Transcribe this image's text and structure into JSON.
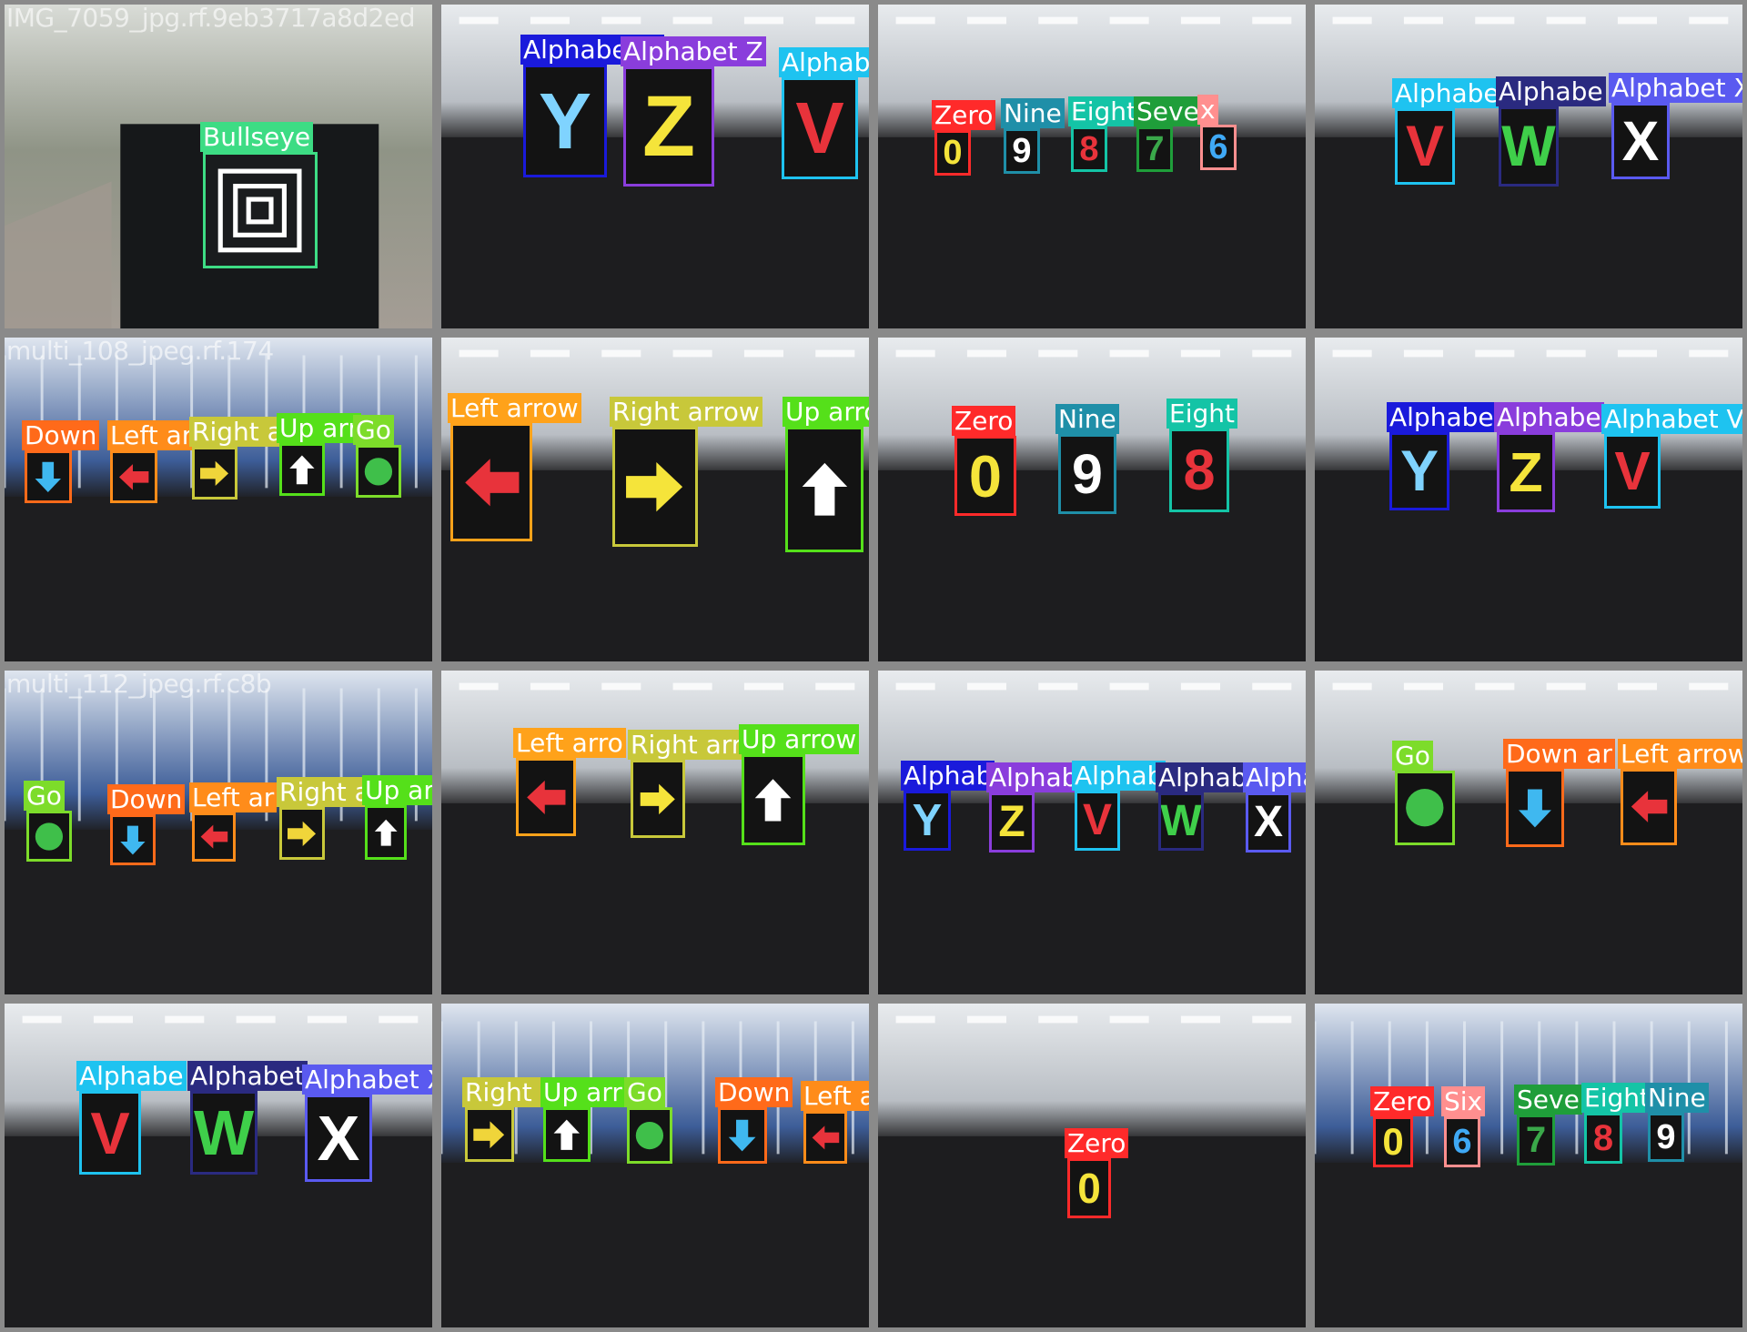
{
  "tiles": [
    {
      "filename": "IMG_7059_jpg.rf.9eb3717a8d2ed",
      "scene": "outdoor",
      "detections": [
        {
          "label": "Bullseye",
          "color": "#3ddc84",
          "symbol": "bullseye",
          "symbol_color": "#ffffff"
        }
      ]
    },
    {
      "filename": "",
      "scene": "lab",
      "detections": [
        {
          "label": "Alphabet Y",
          "color": "#1a1adb",
          "symbol": "Y",
          "symbol_color": "#7fd3ff"
        },
        {
          "label": "Alphabet Z",
          "color": "#8a3ddc",
          "symbol": "Z",
          "symbol_color": "#f5e43a"
        },
        {
          "label": "Alphabet V",
          "color": "#1ec3f0",
          "symbol": "V",
          "symbol_color": "#e8333b"
        }
      ]
    },
    {
      "filename": "",
      "scene": "lab",
      "detections": [
        {
          "label": "Zero",
          "color": "#ff2a2a",
          "symbol": "0",
          "symbol_color": "#f5e43a"
        },
        {
          "label": "Nine",
          "color": "#1f8fa8",
          "symbol": "9",
          "symbol_color": "#ffffff"
        },
        {
          "label": "Eight",
          "color": "#14c4a6",
          "symbol": "8",
          "symbol_color": "#e8333b"
        },
        {
          "label": "Seven",
          "color": "#1f9e3a",
          "symbol": "7",
          "symbol_color": "#3aa84a"
        },
        {
          "label": "x",
          "color": "#ff8f8f",
          "symbol": "6",
          "symbol_color": "#3fa9f5"
        }
      ]
    },
    {
      "filename": "",
      "scene": "lab",
      "detections": [
        {
          "label": "Alphabe",
          "color": "#1ec3f0",
          "symbol": "V",
          "symbol_color": "#e8333b"
        },
        {
          "label": "Alphabe",
          "color": "#2a2a80",
          "symbol": "W",
          "symbol_color": "#3fcf4a"
        },
        {
          "label": "Alphabet X",
          "color": "#5a5af0",
          "symbol": "X",
          "symbol_color": "#ffffff"
        }
      ]
    },
    {
      "filename": "multi_108_jpeg.rf.174",
      "scene": "stadium",
      "detections": [
        {
          "label": "Down",
          "color": "#ff6a1a",
          "symbol": "arrow-down",
          "symbol_color": "#3fb8f0"
        },
        {
          "label": "Left ar",
          "color": "#ff8c1a",
          "symbol": "arrow-left",
          "symbol_color": "#e8333b"
        },
        {
          "label": "Right a",
          "color": "#c8c83a",
          "symbol": "arrow-right",
          "symbol_color": "#f0d53a"
        },
        {
          "label": "Up arr",
          "color": "#55e01a",
          "symbol": "arrow-up",
          "symbol_color": "#ffffff"
        },
        {
          "label": "Go",
          "color": "#7ddc2a",
          "symbol": "circle",
          "symbol_color": "#3fbf4a"
        }
      ]
    },
    {
      "filename": "",
      "scene": "lab",
      "detections": [
        {
          "label": "Left arrow",
          "color": "#ffa21a",
          "symbol": "arrow-left",
          "symbol_color": "#e8333b"
        },
        {
          "label": "Right arrow",
          "color": "#c8c83a",
          "symbol": "arrow-right",
          "symbol_color": "#f5e43a"
        },
        {
          "label": "Up arrow",
          "color": "#55e01a",
          "symbol": "arrow-up",
          "symbol_color": "#ffffff"
        }
      ]
    },
    {
      "filename": "",
      "scene": "lab",
      "detections": [
        {
          "label": "Zero",
          "color": "#ff2a2a",
          "symbol": "0",
          "symbol_color": "#f5e43a"
        },
        {
          "label": "Nine",
          "color": "#1f8fa8",
          "symbol": "9",
          "symbol_color": "#ffffff"
        },
        {
          "label": "Eight",
          "color": "#14c4a6",
          "symbol": "8",
          "symbol_color": "#e8333b"
        }
      ]
    },
    {
      "filename": "",
      "scene": "lab",
      "detections": [
        {
          "label": "Alphabe",
          "color": "#1a1adb",
          "symbol": "Y",
          "symbol_color": "#7fd3ff"
        },
        {
          "label": "Alphabe",
          "color": "#8a3ddc",
          "symbol": "Z",
          "symbol_color": "#f5e43a"
        },
        {
          "label": "Alphabet V",
          "color": "#1ec3f0",
          "symbol": "V",
          "symbol_color": "#e8333b"
        }
      ]
    },
    {
      "filename": "multi_112_jpeg.rf.c8b",
      "scene": "stadium",
      "detections": [
        {
          "label": "Go",
          "color": "#7ddc2a",
          "symbol": "circle",
          "symbol_color": "#3fbf4a"
        },
        {
          "label": "Down",
          "color": "#ff6a1a",
          "symbol": "arrow-down",
          "symbol_color": "#3fb8f0"
        },
        {
          "label": "Left ar",
          "color": "#ff8c1a",
          "symbol": "arrow-left",
          "symbol_color": "#e8333b"
        },
        {
          "label": "Right a",
          "color": "#c8c83a",
          "symbol": "arrow-right",
          "symbol_color": "#f0d53a"
        },
        {
          "label": "Up arrow",
          "color": "#55e01a",
          "symbol": "arrow-up",
          "symbol_color": "#ffffff"
        }
      ]
    },
    {
      "filename": "",
      "scene": "lab",
      "detections": [
        {
          "label": "Left arro",
          "color": "#ffa21a",
          "symbol": "arrow-left",
          "symbol_color": "#e8333b"
        },
        {
          "label": "Right arr",
          "color": "#c8c83a",
          "symbol": "arrow-right",
          "symbol_color": "#f5e43a"
        },
        {
          "label": "Up arrow",
          "color": "#55e01a",
          "symbol": "arrow-up",
          "symbol_color": "#ffffff"
        }
      ]
    },
    {
      "filename": "",
      "scene": "lab",
      "detections": [
        {
          "label": "Alphab",
          "color": "#1a1adb",
          "symbol": "Y",
          "symbol_color": "#7fd3ff"
        },
        {
          "label": "Alphab",
          "color": "#8a3ddc",
          "symbol": "Z",
          "symbol_color": "#f5e43a"
        },
        {
          "label": "Alphab",
          "color": "#1ec3f0",
          "symbol": "V",
          "symbol_color": "#e8333b"
        },
        {
          "label": "Alphab",
          "color": "#2a2a80",
          "symbol": "W",
          "symbol_color": "#3fcf4a"
        },
        {
          "label": "Alphabet X",
          "color": "#5a5af0",
          "symbol": "X",
          "symbol_color": "#ffffff"
        }
      ]
    },
    {
      "filename": "",
      "scene": "lab",
      "detections": [
        {
          "label": "Go",
          "color": "#7ddc2a",
          "symbol": "circle",
          "symbol_color": "#3fbf4a"
        },
        {
          "label": "Down ar",
          "color": "#ff6a1a",
          "symbol": "arrow-down",
          "symbol_color": "#3fb8f0"
        },
        {
          "label": "Left arrow",
          "color": "#ff8c1a",
          "symbol": "arrow-left",
          "symbol_color": "#e8333b"
        }
      ]
    },
    {
      "filename": "",
      "scene": "lab",
      "detections": [
        {
          "label": "Alphabe",
          "color": "#1ec3f0",
          "symbol": "V",
          "symbol_color": "#e8333b"
        },
        {
          "label": "Alphabet",
          "color": "#2a2a80",
          "symbol": "W",
          "symbol_color": "#3fcf4a"
        },
        {
          "label": "Alphabet X",
          "color": "#5a5af0",
          "symbol": "X",
          "symbol_color": "#ffffff"
        }
      ]
    },
    {
      "filename": "",
      "scene": "stadium",
      "detections": [
        {
          "label": "Right a",
          "color": "#c8c83a",
          "symbol": "arrow-right",
          "symbol_color": "#f0d53a"
        },
        {
          "label": "Up arr",
          "color": "#55e01a",
          "symbol": "arrow-up",
          "symbol_color": "#ffffff"
        },
        {
          "label": "Go",
          "color": "#7ddc2a",
          "symbol": "circle",
          "symbol_color": "#3fbf4a"
        },
        {
          "label": "Down",
          "color": "#ff6a1a",
          "symbol": "arrow-down",
          "symbol_color": "#3fb8f0"
        },
        {
          "label": "Left arrow",
          "color": "#ff8c1a",
          "symbol": "arrow-left",
          "symbol_color": "#e8333b"
        }
      ]
    },
    {
      "filename": "",
      "scene": "lab",
      "detections": [
        {
          "label": "Zero",
          "color": "#ff2a2a",
          "symbol": "0",
          "symbol_color": "#f5e43a"
        }
      ]
    },
    {
      "filename": "",
      "scene": "stadium",
      "detections": [
        {
          "label": "Zero",
          "color": "#ff2a2a",
          "symbol": "0",
          "symbol_color": "#f5e43a"
        },
        {
          "label": "Six",
          "color": "#ff8f8f",
          "symbol": "6",
          "symbol_color": "#3fa9f5"
        },
        {
          "label": "Seve",
          "color": "#1f9e3a",
          "symbol": "7",
          "symbol_color": "#3aa84a"
        },
        {
          "label": "Eight",
          "color": "#14c4a6",
          "symbol": "8",
          "symbol_color": "#e8333b"
        },
        {
          "label": "Nine",
          "color": "#1f8fa8",
          "symbol": "9",
          "symbol_color": "#ffffff"
        }
      ]
    }
  ]
}
